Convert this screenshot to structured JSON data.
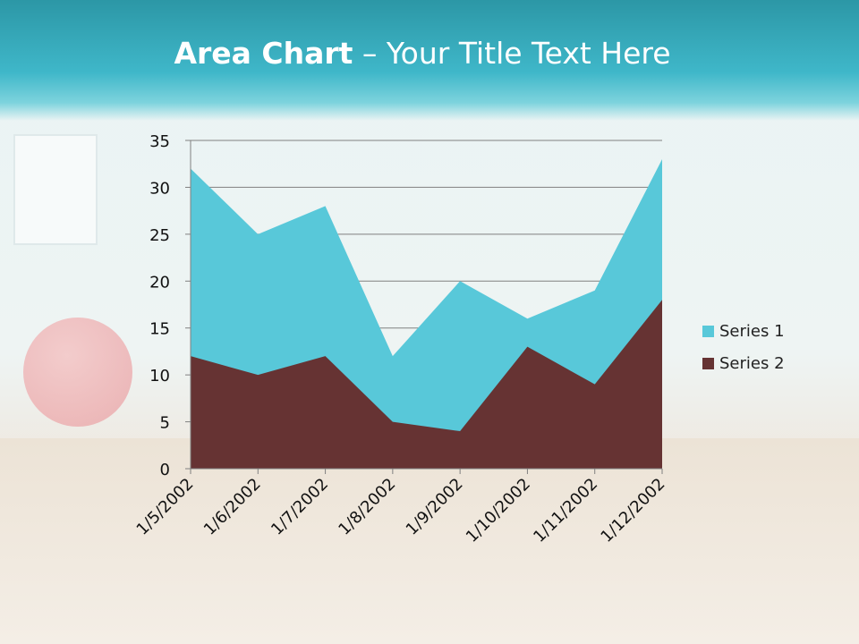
{
  "slide": {
    "title_bold": "Area Chart",
    "title_rest": " – Your Title Text Here"
  },
  "chart_data": {
    "type": "area",
    "categories": [
      "1/5/2002",
      "1/6/2002",
      "1/7/2002",
      "1/8/2002",
      "1/9/2002",
      "1/10/2002",
      "1/11/2002",
      "1/12/2002"
    ],
    "series": [
      {
        "name": "Series 1",
        "color": "#58c8d9",
        "values": [
          32,
          25,
          28,
          12,
          20,
          16,
          19,
          33
        ]
      },
      {
        "name": "Series 2",
        "color": "#663333",
        "values": [
          12,
          10,
          12,
          5,
          4,
          13,
          9,
          18
        ]
      }
    ],
    "yticks": [
      0,
      5,
      10,
      15,
      20,
      25,
      30,
      35
    ],
    "ylim": [
      0,
      35
    ],
    "grid": true,
    "legend_position": "right"
  }
}
